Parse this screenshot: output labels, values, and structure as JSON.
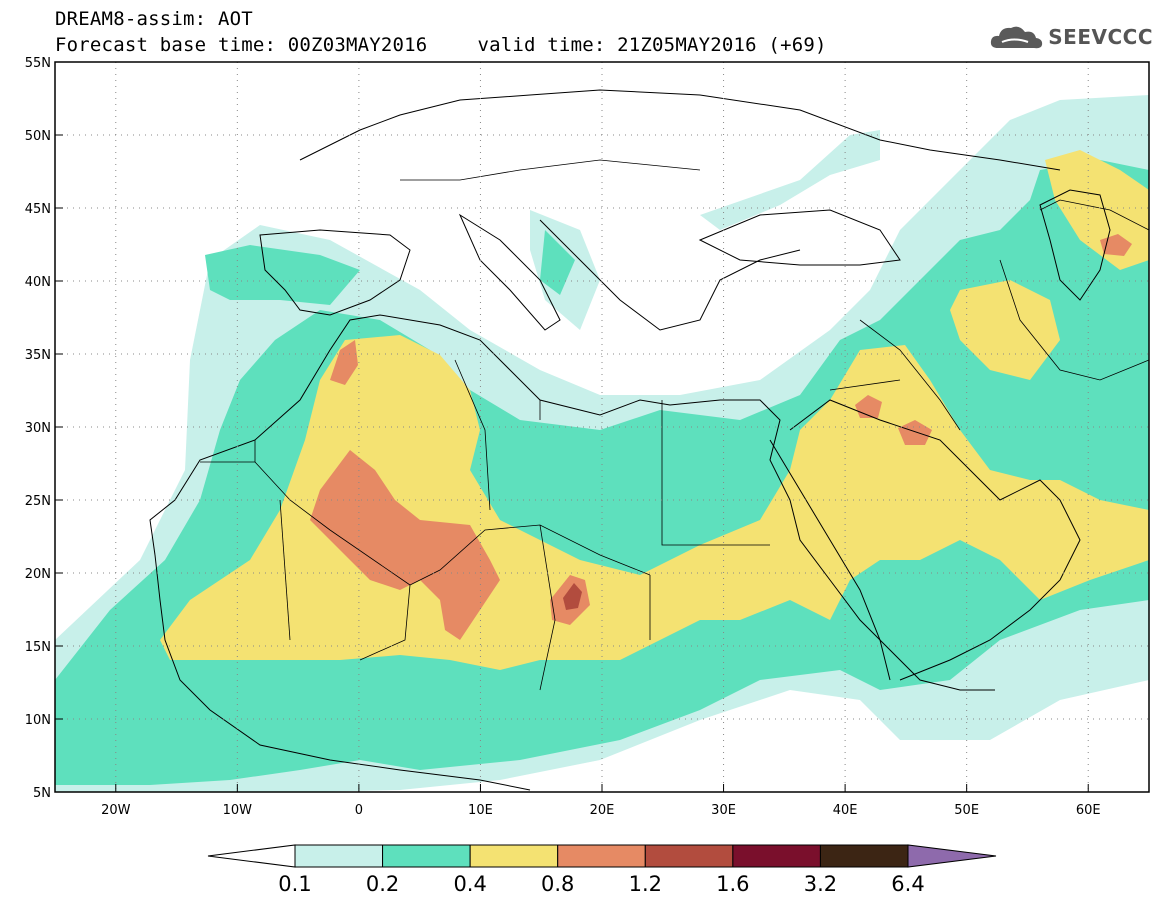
{
  "header": {
    "title": "DREAM8-assim: AOT",
    "base_time": "Forecast base time: 00Z03MAY2016",
    "valid_time": "valid time: 21Z05MAY2016 (+69)"
  },
  "logo": {
    "text": "SEEVCCC",
    "icon": "cloud-icon"
  },
  "map": {
    "lon_range": [
      -25,
      65
    ],
    "lat_range": [
      5,
      55
    ],
    "lon_ticks": [
      {
        "value": -20,
        "label": "20W"
      },
      {
        "value": -10,
        "label": "10W"
      },
      {
        "value": 0,
        "label": "0"
      },
      {
        "value": 10,
        "label": "10E"
      },
      {
        "value": 20,
        "label": "20E"
      },
      {
        "value": 30,
        "label": "30E"
      },
      {
        "value": 40,
        "label": "40E"
      },
      {
        "value": 50,
        "label": "50E"
      },
      {
        "value": 60,
        "label": "60E"
      }
    ],
    "lat_ticks": [
      {
        "value": 55,
        "label": "55N"
      },
      {
        "value": 50,
        "label": "50N"
      },
      {
        "value": 45,
        "label": "45N"
      },
      {
        "value": 40,
        "label": "40N"
      },
      {
        "value": 35,
        "label": "35N"
      },
      {
        "value": 30,
        "label": "30N"
      },
      {
        "value": 25,
        "label": "25N"
      },
      {
        "value": 20,
        "label": "20N"
      },
      {
        "value": 15,
        "label": "15N"
      },
      {
        "value": 10,
        "label": "10N"
      },
      {
        "value": 5,
        "label": "5N"
      }
    ],
    "grid": true
  },
  "colorbar": {
    "levels": [
      "0.1",
      "0.2",
      "0.4",
      "0.8",
      "1.2",
      "1.6",
      "3.2",
      "6.4"
    ],
    "colors": [
      "#c8f0ea",
      "#5ee0bd",
      "#f4e272",
      "#e68a64",
      "#b24c3e",
      "#7a0f2c",
      "#3c2514",
      "#8e6aac"
    ],
    "under_color": "#ffffff"
  }
}
